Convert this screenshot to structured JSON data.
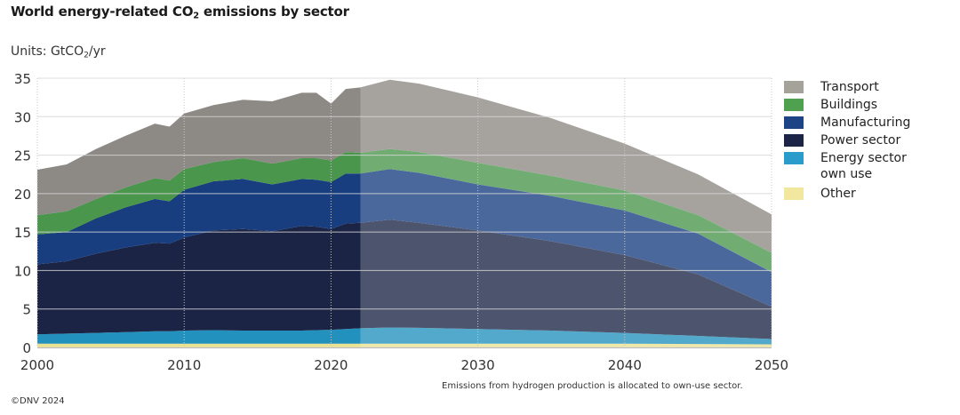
{
  "chart_data": {
    "type": "area",
    "stacked": true,
    "title_parts": {
      "pre": "World energy-related CO",
      "sub": "2",
      "post": " emissions by sector"
    },
    "units_parts": {
      "pre": "Units: GtCO",
      "sub": "2",
      "post": "/yr"
    },
    "xlabel": "",
    "ylabel": "GtCO2/yr",
    "xlim": [
      2000,
      2050
    ],
    "ylim": [
      0,
      35
    ],
    "x_ticks": [
      "2000",
      "2010",
      "2020",
      "2030",
      "2040",
      "2050"
    ],
    "y_ticks": [
      "0",
      "5",
      "10",
      "15",
      "20",
      "25",
      "30",
      "35"
    ],
    "grid": "horizontal solid, vertical dotted at decades",
    "projection_start": 2022,
    "x": [
      2000,
      2002,
      2004,
      2006,
      2008,
      2009,
      2010,
      2012,
      2014,
      2016,
      2018,
      2019,
      2020,
      2021,
      2022,
      2024,
      2026,
      2030,
      2035,
      2040,
      2045,
      2050
    ],
    "series": [
      {
        "name": "Other",
        "color": "#ece28f",
        "legend_color": "#f1e79e",
        "values": [
          0.5,
          0.5,
          0.5,
          0.5,
          0.5,
          0.5,
          0.5,
          0.5,
          0.5,
          0.5,
          0.5,
          0.5,
          0.5,
          0.5,
          0.5,
          0.5,
          0.5,
          0.5,
          0.5,
          0.5,
          0.45,
          0.4
        ]
      },
      {
        "name": "Energy sector own use",
        "color": "#2291bd",
        "legend_color": "#2a9ccb",
        "values": [
          1.2,
          1.3,
          1.4,
          1.5,
          1.6,
          1.6,
          1.7,
          1.75,
          1.7,
          1.7,
          1.7,
          1.75,
          1.8,
          1.9,
          2.0,
          2.1,
          2.05,
          1.9,
          1.7,
          1.4,
          1.05,
          0.7
        ]
      },
      {
        "name": "Power sector",
        "color": "#1b2444",
        "legend_color": "#1c2546",
        "values": [
          9.1,
          9.4,
          10.3,
          11.0,
          11.5,
          11.4,
          12.1,
          12.95,
          13.2,
          12.9,
          13.6,
          13.45,
          13.1,
          13.7,
          13.7,
          14.0,
          13.65,
          12.8,
          11.6,
          10.1,
          8.0,
          4.2
        ]
      },
      {
        "name": "Manufacturing",
        "color": "#183e80",
        "legend_color": "#1d4585",
        "values": [
          3.9,
          3.8,
          4.6,
          5.2,
          5.7,
          5.5,
          6.2,
          6.4,
          6.5,
          6.1,
          6.1,
          6.1,
          6.1,
          6.5,
          6.4,
          6.6,
          6.5,
          6.0,
          5.9,
          5.8,
          5.3,
          4.5
        ]
      },
      {
        "name": "Buildings",
        "color": "#4a964c",
        "legend_color": "#4fa14f",
        "values": [
          2.5,
          2.7,
          2.5,
          2.6,
          2.7,
          2.7,
          2.7,
          2.5,
          2.7,
          2.7,
          2.7,
          2.8,
          2.8,
          2.8,
          2.7,
          2.6,
          2.7,
          2.8,
          2.6,
          2.6,
          2.4,
          2.5
        ]
      },
      {
        "name": "Transport",
        "color": "#8d8985",
        "legend_color": "#a4a299",
        "values": [
          5.9,
          6.1,
          6.5,
          6.7,
          7.1,
          7.0,
          7.2,
          7.4,
          7.6,
          8.1,
          8.5,
          8.5,
          7.4,
          8.2,
          8.5,
          9.0,
          8.9,
          8.5,
          7.5,
          6.1,
          5.3,
          5.0
        ]
      }
    ],
    "legend": {
      "placement": "right",
      "entries": [
        "Transport",
        "Buildings",
        "Manufacturing",
        "Power sector",
        "Energy sector own use",
        "Other"
      ]
    },
    "footnote": "Emissions from hydrogen production is allocated to own-use sector.",
    "copyright": "©DNV 2024"
  }
}
